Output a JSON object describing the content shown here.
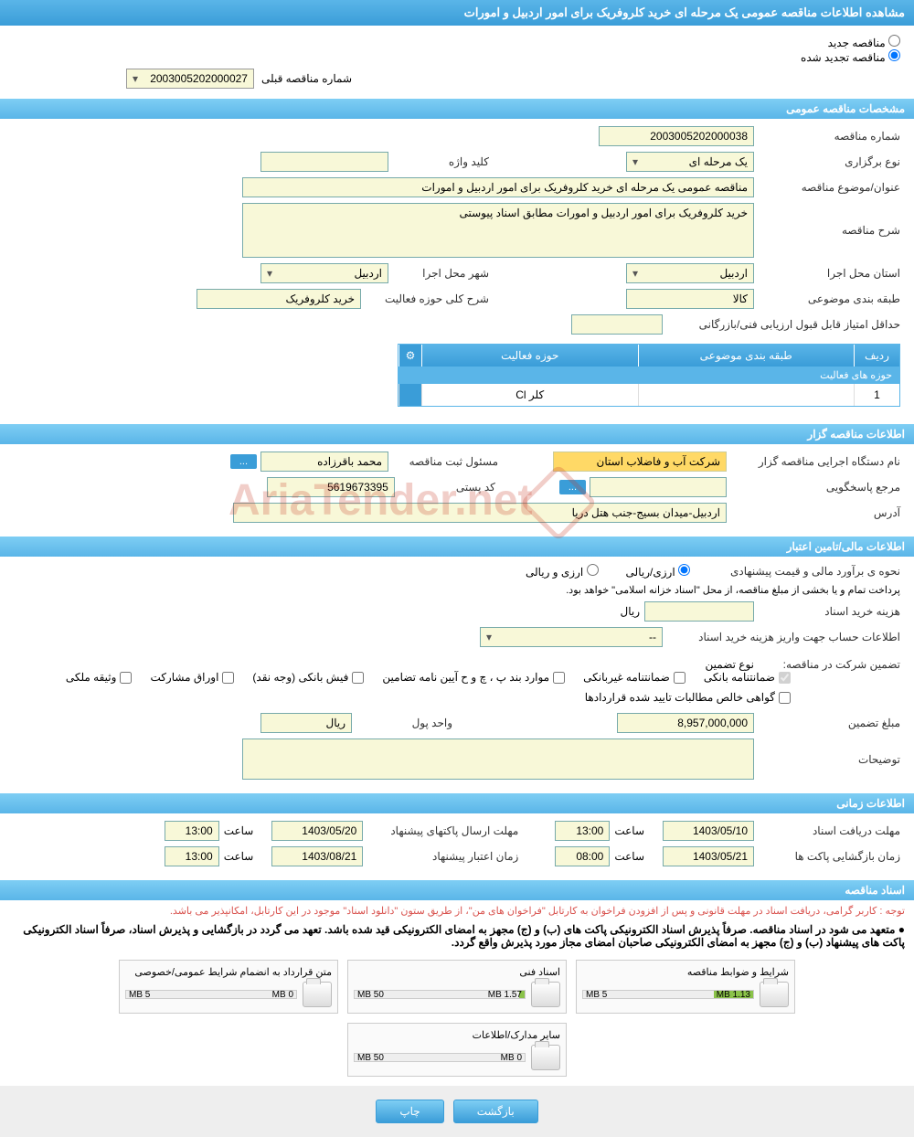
{
  "title": "مشاهده اطلاعات مناقصه عمومی یک مرحله ای خرید کلروفریک برای امور اردبیل و امورات",
  "radio": {
    "new": "مناقصه جدید",
    "renewed": "مناقصه تجدید شده"
  },
  "prev_label": "شماره مناقصه قبلی",
  "prev_value": "2003005202000027",
  "sections": {
    "general": "مشخصات مناقصه عمومی",
    "organizer": "اطلاعات مناقصه گزار",
    "financial": "اطلاعات مالی/تامین اعتبار",
    "timing": "اطلاعات زمانی",
    "docs": "اسناد مناقصه"
  },
  "general": {
    "number_label": "شماره مناقصه",
    "number": "2003005202000038",
    "type_label": "نوع برگزاری",
    "type": "یک مرحله ای",
    "keyword_label": "کلید واژه",
    "keyword": "",
    "subject_label": "عنوان/موضوع مناقصه",
    "subject": "مناقصه عمومی یک مرحله ای خرید کلروفریک برای امور اردبیل و امورات",
    "desc_label": "شرح مناقصه",
    "desc": "خرید کلروفریک برای امور اردبیل و امورات مطابق اسناد پیوستی",
    "province_label": "استان محل اجرا",
    "province": "اردبیل",
    "city_label": "شهر محل اجرا",
    "city": "اردبیل",
    "category_label": "طبقه بندی موضوعی",
    "category": "کالا",
    "activity_desc_label": "شرح کلی حوزه فعالیت",
    "activity_desc": "خرید کلروفریک",
    "min_score_label": "حداقل امتیاز قابل قبول ارزیابی فنی/بازرگانی",
    "min_score": ""
  },
  "activity_table": {
    "title": "حوزه های فعالیت",
    "col_row": "ردیف",
    "col_category": "طبقه بندی موضوعی",
    "col_field": "حوزه فعالیت",
    "row_num": "1",
    "row_cat": "",
    "row_field": "کلر Cl"
  },
  "organizer": {
    "executive_label": "نام دستگاه اجرایی مناقصه گزار",
    "executive": "شرکت آب و فاضلاب استان",
    "responsible_label": "مسئول ثبت مناقصه",
    "responsible": "محمد باقرزاده",
    "contact_label": "مرجع پاسخگویی",
    "contact": "",
    "postal_label": "کد پستی",
    "postal": "5619673395",
    "address_label": "آدرس",
    "address": "اردبیل-میدان بسیج-جنب هتل دریا"
  },
  "financial": {
    "estimate_label": "نحوه ی برآورد مالی و قیمت پیشنهادی",
    "option1": "ارزی/ریالی",
    "option2": "ارزی و ریالی",
    "treasury_note": "پرداخت تمام و یا بخشی از مبلغ مناقصه، از محل \"اسناد خزانه اسلامی\" خواهد بود.",
    "doc_cost_label": "هزینه خرید اسناد",
    "doc_cost": "",
    "rial": "ریال",
    "account_label": "اطلاعات حساب جهت واریز هزینه خرید اسناد",
    "account": "--",
    "guarantee_label": "تضمین شرکت در مناقصه:",
    "guarantee_type_label": "نوع تضمین",
    "cb1": "ضمانتنامه بانکی",
    "cb2": "ضمانتنامه غیربانکی",
    "cb3": "موارد بند پ ، چ و ح آیین نامه تضامین",
    "cb4": "فیش بانکی (وجه نقد)",
    "cb5": "اوراق مشارکت",
    "cb6": "وثیقه ملکی",
    "cb7": "گواهی خالص مطالبات تایید شده قراردادها",
    "guarantee_amount_label": "مبلغ تضمین",
    "guarantee_amount": "8,957,000,000",
    "unit_label": "واحد پول",
    "unit": "ریال",
    "explain_label": "توضیحات"
  },
  "timing": {
    "receive_label": "مهلت دریافت اسناد",
    "receive_date": "1403/05/10",
    "receive_time_label": "ساعت",
    "receive_time": "13:00",
    "submit_label": "مهلت ارسال پاکتهای پیشنهاد",
    "submit_date": "1403/05/20",
    "submit_time_label": "ساعت",
    "submit_time": "13:00",
    "open_label": "زمان بازگشایی پاکت ها",
    "open_date": "1403/05/21",
    "open_time_label": "ساعت",
    "open_time": "08:00",
    "validity_label": "زمان اعتبار پیشنهاد",
    "validity_date": "1403/08/21",
    "validity_time_label": "ساعت",
    "validity_time": "13:00"
  },
  "docs": {
    "note1": "توجه : کاربر گرامی، دریافت اسناد در مهلت قانونی و پس از افزودن فراخوان به کارتابل \"فراخوان های من\"، از طریق ستون \"دانلود اسناد\" موجود در این کارتابل، امکانپذیر می باشد.",
    "note2": "● متعهد می شود در اسناد مناقصه. صرفاً پذیرش اسناد الکترونیکی پاکت های (ب) و (ج) مجهز به امضای الکترونیکی قید شده باشد. تعهد می گردد در بازگشایی و پذیرش اسناد، صرفاً اسناد الکترونیکی پاکت های پیشنهاد (ب) و (ج) مجهز به امضای الکترونیکی صاحبان امضای مجاز مورد پذیرش واقع گردد.",
    "d1_title": "شرایط و ضوابط مناقصه",
    "d1_size": "1.13 MB",
    "d1_max": "5 MB",
    "d1_pct": 23,
    "d2_title": "اسناد فنی",
    "d2_size": "1.57 MB",
    "d2_max": "50 MB",
    "d2_pct": 3,
    "d3_title": "متن قرارداد به انضمام شرایط عمومی/خصوصی",
    "d3_size": "0 MB",
    "d3_max": "5 MB",
    "d3_pct": 0,
    "d4_title": "سایر مدارک/اطلاعات",
    "d4_size": "0 MB",
    "d4_max": "50 MB",
    "d4_pct": 0
  },
  "buttons": {
    "back": "بازگشت",
    "print": "چاپ",
    "dots": "..."
  },
  "watermark": "AriaTender.net"
}
